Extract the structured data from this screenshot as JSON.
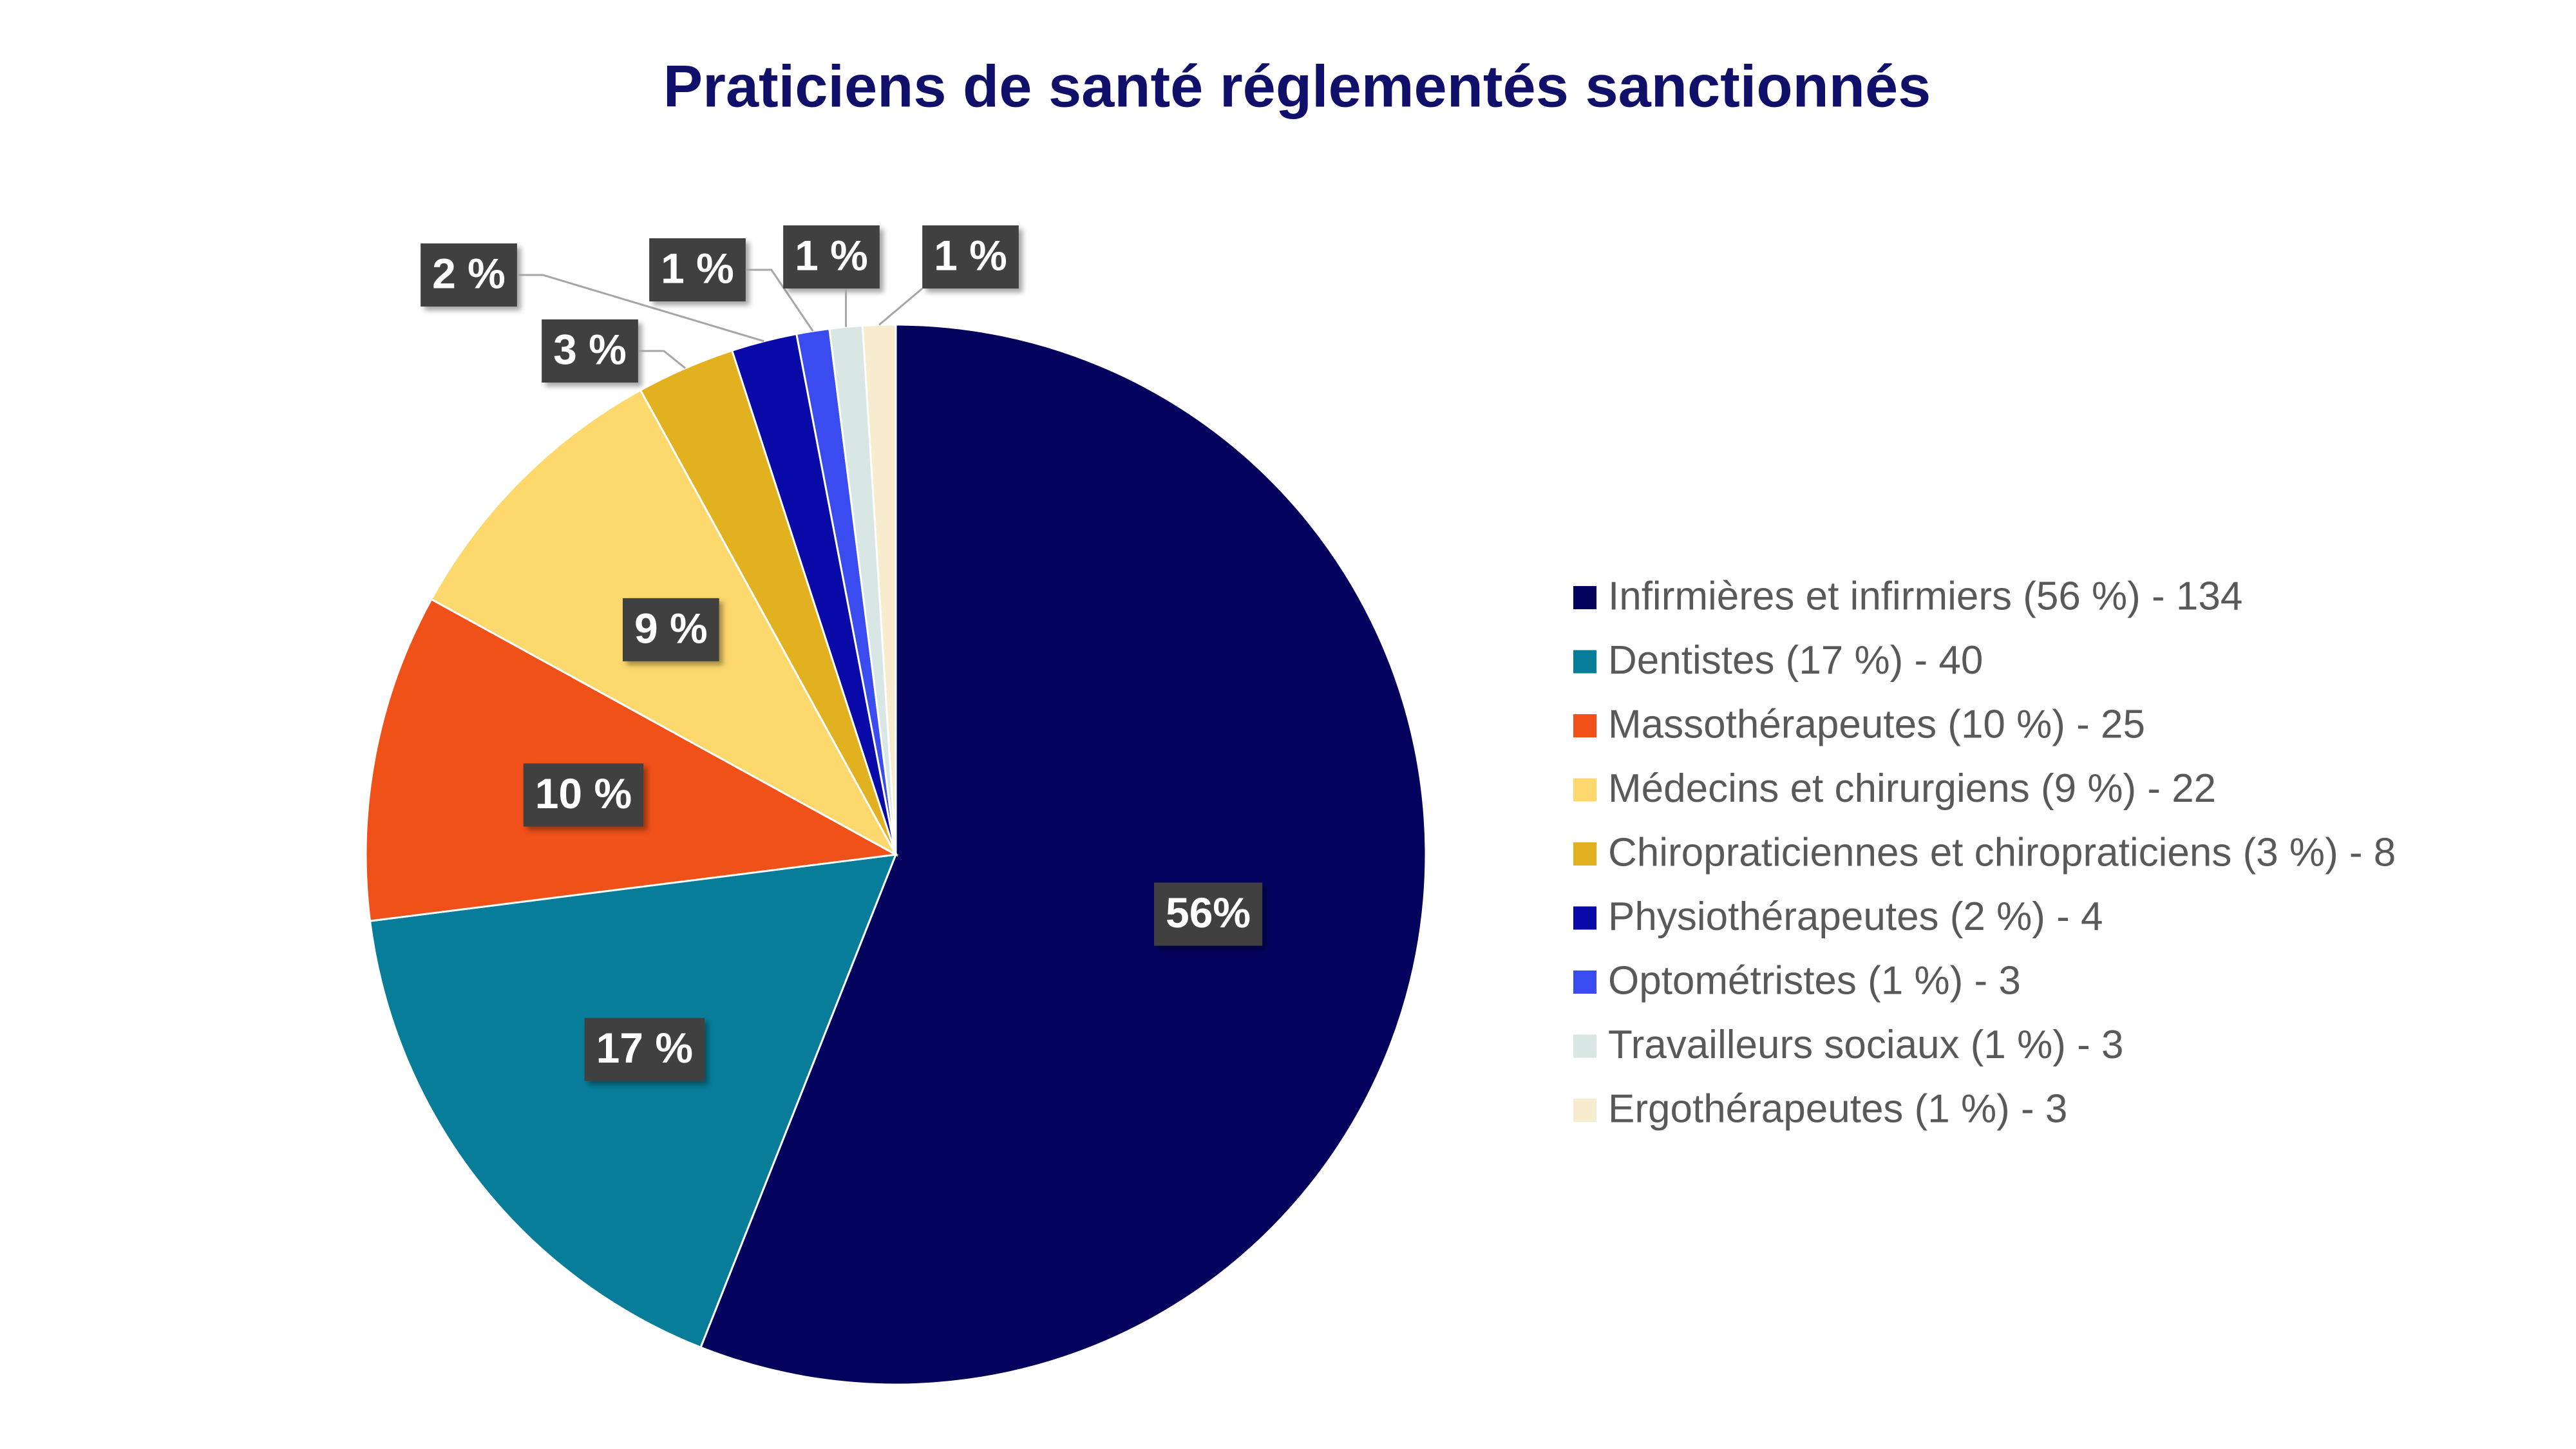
{
  "chart_data": {
    "type": "pie",
    "title": "Praticiens de santé réglementés sanctionnés",
    "categories": [
      "Infirmières et infirmiers (56 %) - 134",
      "Dentistes (17 %) - 40",
      "Massothérapeutes (10 %) - 25",
      "Médecins et chirurgiens (9 %) - 22",
      "Chiropraticiennes et chiropraticiens (3 %) - 8",
      "Physiothérapeutes (2 %) - 4",
      "Optométristes (1 %) - 3",
      "Travailleurs sociaux (1 %) - 3",
      "Ergothérapeutes (1 %) - 3"
    ],
    "values": [
      56,
      17,
      10,
      9,
      3,
      2,
      1,
      1,
      1
    ],
    "value_labels": [
      "56%",
      "17 %",
      "10 %",
      "9 %",
      "3 %",
      "2 %",
      "1 %",
      "1 %",
      "1 %"
    ],
    "colors": [
      "#03035e",
      "#077d9a",
      "#ef5118",
      "#fdd86d",
      "#e2b11f",
      "#0a0aa8",
      "#3a4bef",
      "#d8e6e4",
      "#f8ecce"
    ],
    "legend": "right"
  }
}
